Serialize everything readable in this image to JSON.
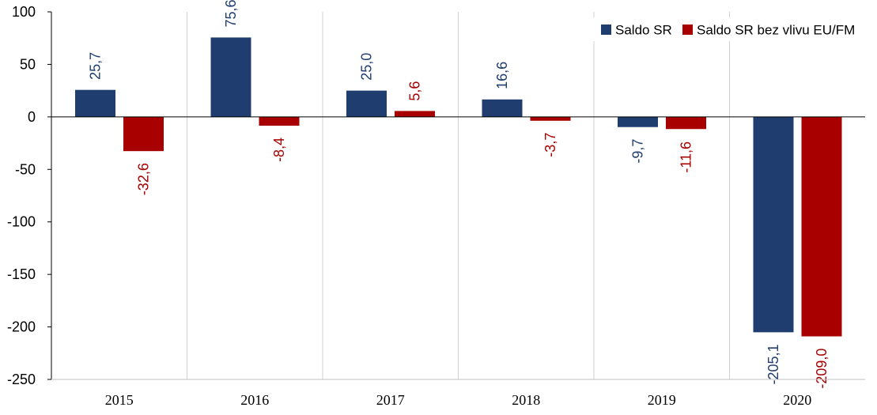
{
  "chart_data": {
    "type": "bar",
    "categories": [
      "2015",
      "2016",
      "2017",
      "2018",
      "2019",
      "2020"
    ],
    "series": [
      {
        "name": "Saldo SR",
        "color": "#1f3d6e",
        "values": [
          25.7,
          75.6,
          25.0,
          16.6,
          -9.7,
          -205.1
        ],
        "labels": [
          "25,7",
          "75,6",
          "25,0",
          "16,6",
          "-9,7",
          "-205,1"
        ],
        "label_color": "#1f3d6e"
      },
      {
        "name": "Saldo SR bez vlivu EU/FM",
        "color": "#a80000",
        "values": [
          -32.6,
          -8.4,
          5.6,
          -3.7,
          -11.6,
          -209.0
        ],
        "labels": [
          "-32,6",
          "-8,4",
          "5,6",
          "-3,7",
          "-11,6",
          "-209,0"
        ],
        "label_color": "#a80000"
      }
    ],
    "ylim": [
      -250,
      100
    ],
    "yticks": [
      100,
      50,
      0,
      -50,
      -100,
      -150,
      -200,
      -250
    ],
    "ytick_labels": [
      "100",
      "50",
      "0",
      "-50",
      "-100",
      "-150",
      "-200",
      "-250"
    ],
    "grid": "vertical-category-separators",
    "legend": "top-right",
    "title": "",
    "xlabel": "",
    "ylabel": ""
  }
}
